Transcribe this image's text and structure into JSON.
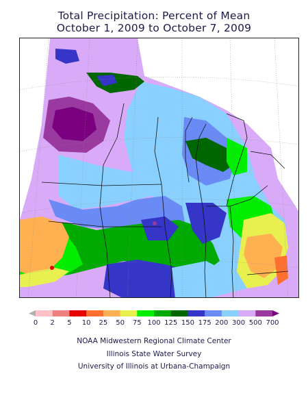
{
  "title": {
    "line1": "Total Precipitation: Percent of Mean",
    "line2": "October 1, 2009 to October 7, 2009"
  },
  "legend": {
    "labels": [
      "0",
      "2",
      "5",
      "10",
      "25",
      "50",
      "75",
      "100",
      "125",
      "150",
      "175",
      "200",
      "300",
      "500",
      "700"
    ],
    "colors": [
      "#b0b0b0",
      "#ffc0c8",
      "#f08080",
      "#e60000",
      "#ff7030",
      "#ffb050",
      "#e8f050",
      "#00ee00",
      "#00aa00",
      "#006600",
      "#3535c8",
      "#6a8af5",
      "#8ad0ff",
      "#d8aaf8",
      "#9a3aa0",
      "#7a0080"
    ]
  },
  "credits": {
    "line1": "NOAA Midwestern Regional Climate Center",
    "line2": "Illinois State Water Survey",
    "line3": "University of Illinois at Urbana-Champaign"
  },
  "palette": {
    "lavender": "#d8aaf8",
    "purple": "#9a3aa0",
    "dark_purple": "#7a0080",
    "light_blue": "#8ad0ff",
    "blue": "#6a8af5",
    "dark_blue": "#3535c8",
    "dark_green": "#006600",
    "mid_green": "#00aa00",
    "bright_green": "#00ee00",
    "yellow_green": "#e8f050",
    "orange": "#ffb050",
    "dark_orange": "#ff7030",
    "red": "#e60000"
  }
}
